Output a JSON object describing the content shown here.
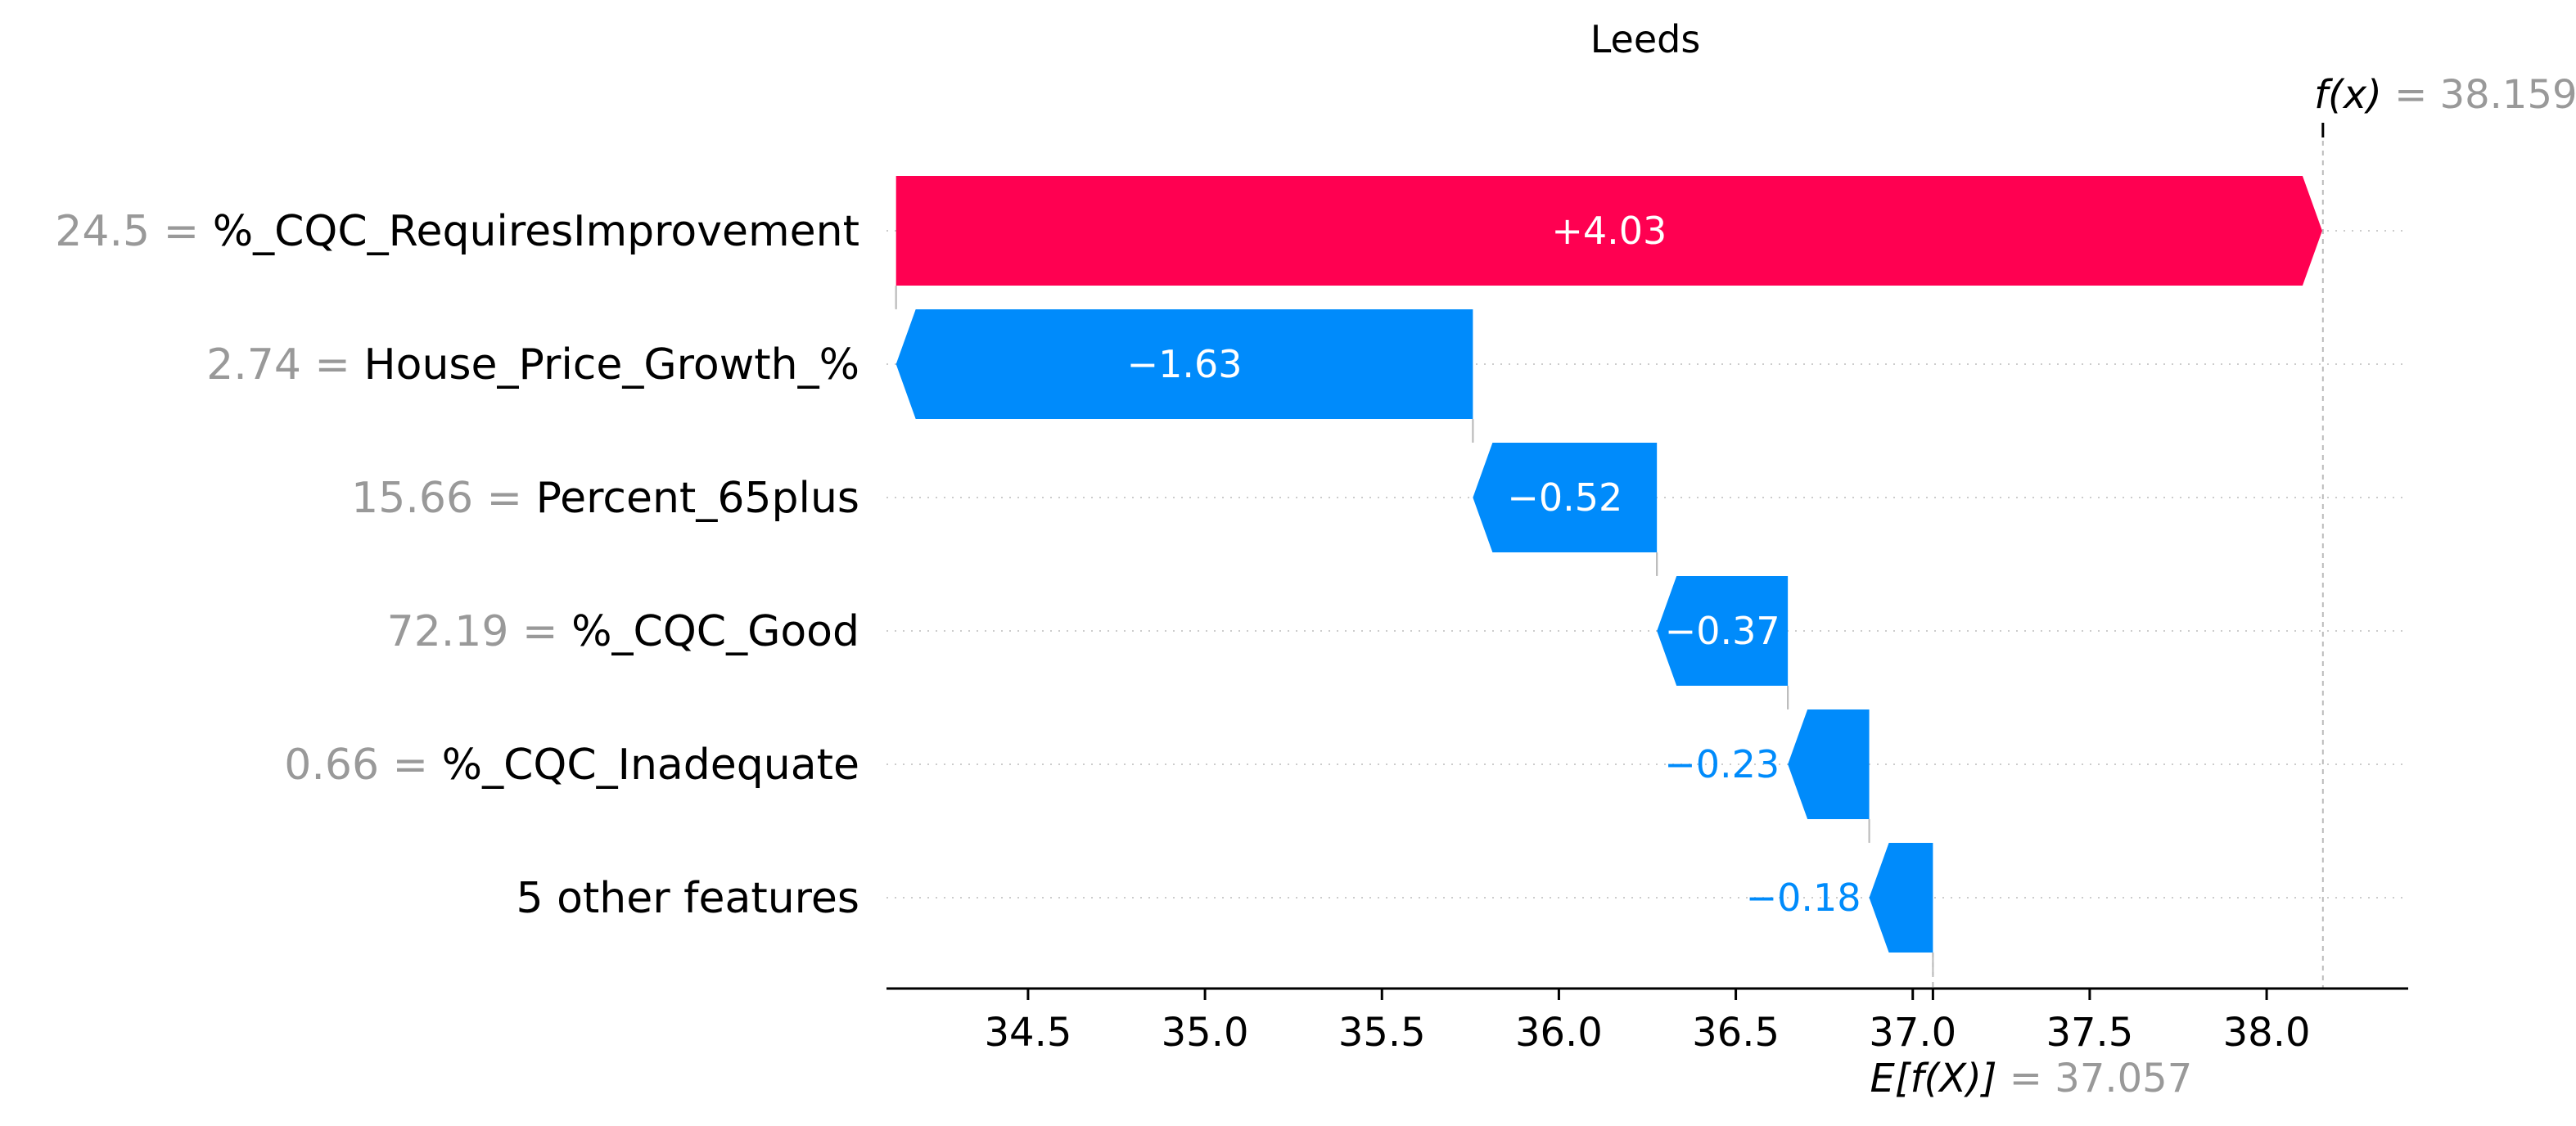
{
  "chart_data": {
    "type": "bar",
    "title": "Leeds",
    "base_value": 37.057,
    "base_value_label": "E[f(X)]",
    "base_value_text": "= 37.057",
    "output_value": 38.159,
    "output_value_label": "f(x)",
    "output_value_text": "= 38.159",
    "xlim": [
      34.1,
      38.4
    ],
    "x_ticks": [
      34.5,
      35.0,
      35.5,
      36.0,
      36.5,
      37.0,
      37.5,
      38.0
    ],
    "x_tick_labels": [
      "34.5",
      "35.0",
      "35.5",
      "36.0",
      "36.5",
      "37.0",
      "37.5",
      "38.0"
    ],
    "grid": false,
    "features": [
      {
        "value_text": "24.5 =",
        "name": "%_CQC_RequiresImprovement",
        "contribution": 4.03,
        "label": "+4.03"
      },
      {
        "value_text": "2.74 =",
        "name": "House_Price_Growth_%",
        "contribution": -1.63,
        "label": "−1.63"
      },
      {
        "value_text": "15.66 =",
        "name": "Percent_65plus",
        "contribution": -0.52,
        "label": "−0.52"
      },
      {
        "value_text": "72.19 =",
        "name": "%_CQC_Good",
        "contribution": -0.37,
        "label": "−0.37"
      },
      {
        "value_text": "0.66 =",
        "name": "%_CQC_Inadequate",
        "contribution": -0.23,
        "label": "−0.23"
      },
      {
        "value_text": "",
        "name": "5 other features",
        "contribution": -0.18,
        "label": "−0.18"
      }
    ],
    "colors": {
      "positive": "#ff0051",
      "negative": "#008bfb",
      "axis": "#000000",
      "guide": "#bbbbbb",
      "value_text": "#999999"
    }
  }
}
